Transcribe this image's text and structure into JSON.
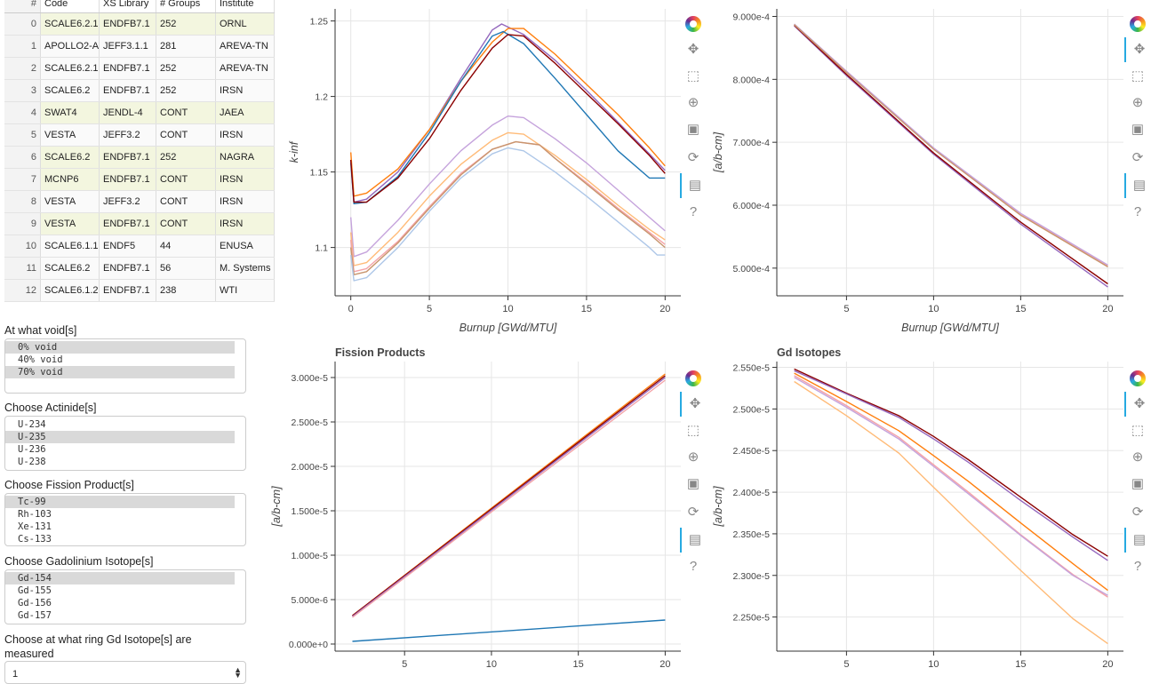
{
  "table": {
    "columns": [
      "#",
      "Code",
      "XS Library",
      "# Groups",
      "Institute"
    ],
    "rows": [
      [
        "0",
        "SCALE6.2.1",
        "ENDFB7.1",
        "252",
        "ORNL"
      ],
      [
        "1",
        "APOLLO2-A",
        "JEFF3.1.1",
        "281",
        "AREVA-TN"
      ],
      [
        "2",
        "SCALE6.2.1",
        "ENDFB7.1",
        "252",
        "AREVA-TN"
      ],
      [
        "3",
        "SCALE6.2",
        "ENDFB7.1",
        "252",
        "IRSN"
      ],
      [
        "4",
        "SWAT4",
        "JENDL-4",
        "CONT",
        "JAEA"
      ],
      [
        "5",
        "VESTA",
        "JEFF3.2",
        "CONT",
        "IRSN"
      ],
      [
        "6",
        "SCALE6.2",
        "ENDFB7.1",
        "252",
        "NAGRA"
      ],
      [
        "7",
        "MCNP6",
        "ENDFB7.1",
        "CONT",
        "IRSN"
      ],
      [
        "8",
        "VESTA",
        "JEFF3.2",
        "CONT",
        "IRSN"
      ],
      [
        "9",
        "VESTA",
        "ENDFB7.1",
        "CONT",
        "IRSN"
      ],
      [
        "10",
        "SCALE6.1.1",
        "ENDF5",
        "44",
        "ENUSA"
      ],
      [
        "11",
        "SCALE6.2",
        "ENDFB7.1",
        "56",
        "M. Systems"
      ],
      [
        "12",
        "SCALE6.1.2",
        "ENDFB7.1",
        "238",
        "WTI"
      ]
    ],
    "highlighted_rows": [
      0,
      4,
      6,
      7,
      9
    ]
  },
  "widgets": {
    "void": {
      "label": "At what void[s]",
      "options": [
        "0% void",
        "40% void",
        "70% void"
      ],
      "selected": [
        0,
        2
      ]
    },
    "actinide": {
      "label": "Choose Actinide[s]",
      "options": [
        "U-234",
        "U-235",
        "U-236",
        "U-238"
      ],
      "selected": [
        1
      ]
    },
    "fission": {
      "label": "Choose Fission Product[s]",
      "options": [
        "Tc-99",
        "Rh-103",
        "Xe-131",
        "Cs-133"
      ],
      "selected": [
        0
      ]
    },
    "gd": {
      "label": "Choose Gadolinium Isotope[s]",
      "options": [
        "Gd-154",
        "Gd-155",
        "Gd-156",
        "Gd-157"
      ],
      "selected": [
        0
      ]
    },
    "ring": {
      "label": "Choose at what ring Gd Isotope[s] are measured",
      "value": "1"
    }
  },
  "toolbar_icons": [
    "bokeh-logo",
    "pan-icon",
    "box-zoom-icon",
    "wheel-zoom-icon",
    "save-icon",
    "reset-icon",
    "hover-icon",
    "help-icon"
  ],
  "chart_data": [
    {
      "id": "kinf",
      "type": "line",
      "title": "",
      "xlabel": "Burnup [GWd/MTU]",
      "ylabel": "k-inf",
      "xlim": [
        -1,
        21
      ],
      "ylim": [
        1.068,
        1.258
      ],
      "xticks": [
        0,
        5,
        10,
        15,
        20
      ],
      "yticks": [
        1.1,
        1.15,
        1.2,
        1.25
      ],
      "ytick_labels": [
        "1.1",
        "1.15",
        "1.2",
        "1.25"
      ],
      "grid": true,
      "series": [
        {
          "color": "#9467bd",
          "x": [
            0,
            0.2,
            1,
            3,
            5,
            7,
            9,
            9.6,
            11,
            13,
            15,
            17,
            19,
            20
          ],
          "y": [
            1.158,
            1.13,
            1.132,
            1.15,
            1.178,
            1.212,
            1.244,
            1.248,
            1.241,
            1.224,
            1.204,
            1.183,
            1.162,
            1.151
          ]
        },
        {
          "color": "#ff7f0e",
          "x": [
            0,
            0.2,
            1,
            3,
            5,
            7,
            9,
            10,
            11,
            13,
            15,
            17,
            19,
            20
          ],
          "y": [
            1.163,
            1.134,
            1.136,
            1.152,
            1.178,
            1.21,
            1.236,
            1.245,
            1.245,
            1.228,
            1.208,
            1.188,
            1.166,
            1.154
          ]
        },
        {
          "color": "#1f77b4",
          "x": [
            0,
            0.2,
            1,
            3,
            5,
            7,
            9,
            9.7,
            11,
            13,
            15,
            17,
            19,
            20
          ],
          "y": [
            1.156,
            1.129,
            1.13,
            1.147,
            1.176,
            1.21,
            1.24,
            1.243,
            1.235,
            1.212,
            1.188,
            1.164,
            1.146,
            1.146
          ]
        },
        {
          "color": "#8b0000",
          "x": [
            0,
            0.2,
            1,
            3,
            5,
            7,
            9,
            10,
            11,
            13,
            15,
            17,
            19,
            20
          ],
          "y": [
            1.158,
            1.13,
            1.13,
            1.146,
            1.172,
            1.204,
            1.232,
            1.241,
            1.24,
            1.222,
            1.202,
            1.182,
            1.161,
            1.149
          ]
        },
        {
          "color": "#c5a3dc",
          "x": [
            0,
            0.2,
            1,
            3,
            5,
            7,
            9,
            10,
            11,
            13,
            15,
            17,
            19,
            20
          ],
          "y": [
            1.12,
            1.094,
            1.097,
            1.118,
            1.142,
            1.164,
            1.181,
            1.187,
            1.186,
            1.172,
            1.156,
            1.138,
            1.12,
            1.111
          ]
        },
        {
          "color": "#ffbb78",
          "x": [
            0,
            0.2,
            1,
            3,
            5,
            7,
            9,
            10,
            11,
            13,
            15,
            17,
            19,
            20
          ],
          "y": [
            1.11,
            1.088,
            1.09,
            1.11,
            1.134,
            1.155,
            1.171,
            1.176,
            1.175,
            1.161,
            1.145,
            1.128,
            1.112,
            1.105
          ]
        },
        {
          "color": "#f4a3a8",
          "x": [
            0,
            0.2,
            1,
            3,
            5,
            7,
            9,
            10.5,
            12,
            13,
            15,
            17,
            19,
            20
          ],
          "y": [
            1.105,
            1.084,
            1.086,
            1.104,
            1.127,
            1.149,
            1.165,
            1.17,
            1.168,
            1.159,
            1.143,
            1.126,
            1.11,
            1.102
          ]
        },
        {
          "color": "#c8956d",
          "x": [
            0,
            0.2,
            1,
            3,
            5,
            7,
            9,
            10.5,
            12,
            13,
            15,
            17,
            19,
            20
          ],
          "y": [
            1.1,
            1.082,
            1.084,
            1.103,
            1.126,
            1.148,
            1.165,
            1.17,
            1.168,
            1.159,
            1.142,
            1.125,
            1.109,
            1.1
          ]
        },
        {
          "color": "#aec7e8",
          "x": [
            0,
            0.2,
            1,
            3,
            5,
            7,
            9,
            10,
            11,
            13,
            15,
            17,
            19,
            19.5,
            20
          ],
          "y": [
            1.095,
            1.078,
            1.08,
            1.1,
            1.124,
            1.146,
            1.162,
            1.166,
            1.164,
            1.15,
            1.134,
            1.117,
            1.1,
            1.095,
            1.095
          ]
        }
      ]
    },
    {
      "id": "actinides",
      "type": "line",
      "title": "",
      "xlabel": "Burnup [GWd/MTU]",
      "ylabel": "[a/b-cm]",
      "xlim": [
        1,
        20.9
      ],
      "ylim": [
        0.000456,
        0.000912
      ],
      "xticks": [
        5,
        10,
        15,
        20
      ],
      "yticks": [
        0.0005,
        0.0006,
        0.0007,
        0.0008,
        0.0009
      ],
      "ytick_labels": [
        "5.000e-4",
        "6.000e-4",
        "7.000e-4",
        "8.000e-4",
        "9.000e-4"
      ],
      "grid": true,
      "series": [
        {
          "color": "#9467bd",
          "x": [
            2,
            5,
            10,
            15,
            20
          ],
          "y": [
            0.000885,
            0.000806,
            0.000681,
            0.00057,
            0.00047
          ]
        },
        {
          "color": "#8b0000",
          "x": [
            2,
            5,
            10,
            15,
            20
          ],
          "y": [
            0.000886,
            0.000808,
            0.000683,
            0.000573,
            0.000475
          ]
        },
        {
          "color": "#f4a3a8",
          "x": [
            2,
            5,
            10,
            15,
            20
          ],
          "y": [
            0.000887,
            0.000812,
            0.00069,
            0.000585,
            0.000503
          ]
        },
        {
          "color": "#c5a3dc",
          "x": [
            2,
            5,
            10,
            15,
            20
          ],
          "y": [
            0.000888,
            0.000813,
            0.000691,
            0.000587,
            0.000505
          ]
        },
        {
          "color": "#c8956d",
          "x": [
            2,
            5,
            10,
            15,
            20
          ],
          "y": [
            0.000887,
            0.000811,
            0.000689,
            0.000584,
            0.000502
          ]
        }
      ]
    },
    {
      "id": "fission",
      "type": "line",
      "title": "Fission Products",
      "xlabel": "",
      "ylabel": "[a/b-cm]",
      "xlim": [
        1,
        20.9
      ],
      "ylim": [
        -8e-07,
        3.18e-05
      ],
      "xticks": [
        5,
        10,
        15,
        20
      ],
      "yticks": [
        0,
        5e-06,
        1e-05,
        1.5e-05,
        2e-05,
        2.5e-05,
        3e-05
      ],
      "ytick_labels": [
        "0.000e+0",
        "5.000e-6",
        "1.000e-5",
        "1.500e-5",
        "2.000e-5",
        "2.500e-5",
        "3.000e-5"
      ],
      "grid": true,
      "series": [
        {
          "color": "#ff7f0e",
          "x": [
            2,
            20
          ],
          "y": [
            3.2e-06,
            3.04e-05
          ]
        },
        {
          "color": "#8b0000",
          "x": [
            2,
            20
          ],
          "y": [
            3.2e-06,
            3.02e-05
          ]
        },
        {
          "color": "#9467bd",
          "x": [
            2,
            20
          ],
          "y": [
            3.1e-06,
            3e-05
          ]
        },
        {
          "color": "#f4a3a8",
          "x": [
            2,
            20
          ],
          "y": [
            3e-06,
            2.97e-05
          ]
        },
        {
          "color": "#1f77b4",
          "x": [
            2,
            20
          ],
          "y": [
            3e-07,
            2.7e-06
          ]
        }
      ]
    },
    {
      "id": "gd",
      "type": "line",
      "title": "Gd Isotopes",
      "xlabel": "",
      "ylabel": "[a/b-cm]",
      "xlim": [
        1,
        20.9
      ],
      "ylim": [
        2.209e-05,
        2.557e-05
      ],
      "xticks": [
        5,
        10,
        15,
        20
      ],
      "yticks": [
        2.25e-05,
        2.3e-05,
        2.35e-05,
        2.4e-05,
        2.45e-05,
        2.5e-05,
        2.55e-05
      ],
      "ytick_labels": [
        "2.250e-5",
        "2.300e-5",
        "2.350e-5",
        "2.400e-5",
        "2.450e-5",
        "2.500e-5",
        "2.550e-5"
      ],
      "grid": true,
      "series": [
        {
          "color": "#8b0000",
          "x": [
            2,
            5,
            8,
            10,
            12,
            15,
            18,
            20
          ],
          "y": [
            2.548e-05,
            2.519e-05,
            2.492e-05,
            2.467e-05,
            2.439e-05,
            2.394e-05,
            2.349e-05,
            2.323e-05
          ]
        },
        {
          "color": "#9467bd",
          "x": [
            2,
            5,
            8,
            10,
            12,
            15,
            18,
            20
          ],
          "y": [
            2.546e-05,
            2.518e-05,
            2.49e-05,
            2.464e-05,
            2.436e-05,
            2.39e-05,
            2.346e-05,
            2.318e-05
          ]
        },
        {
          "color": "#ff7f0e",
          "x": [
            2,
            5,
            8,
            10,
            12,
            15,
            18,
            20
          ],
          "y": [
            2.543e-05,
            2.509e-05,
            2.474e-05,
            2.444e-05,
            2.413e-05,
            2.363e-05,
            2.314e-05,
            2.282e-05
          ]
        },
        {
          "color": "#f4a3a8",
          "x": [
            2,
            5,
            8,
            10,
            12,
            15,
            18,
            20
          ],
          "y": [
            2.54e-05,
            2.504e-05,
            2.466e-05,
            2.433e-05,
            2.4e-05,
            2.349e-05,
            2.301e-05,
            2.274e-05
          ]
        },
        {
          "color": "#c5a3dc",
          "x": [
            2,
            5,
            8,
            10,
            12,
            15,
            18,
            20
          ],
          "y": [
            2.538e-05,
            2.502e-05,
            2.464e-05,
            2.431e-05,
            2.398e-05,
            2.348e-05,
            2.3e-05,
            2.276e-05
          ]
        },
        {
          "color": "#ffbb78",
          "x": [
            2,
            5,
            8,
            10,
            12,
            15,
            18,
            20
          ],
          "y": [
            2.533e-05,
            2.492e-05,
            2.447e-05,
            2.406e-05,
            2.365e-05,
            2.306e-05,
            2.248e-05,
            2.218e-05
          ]
        }
      ]
    }
  ]
}
